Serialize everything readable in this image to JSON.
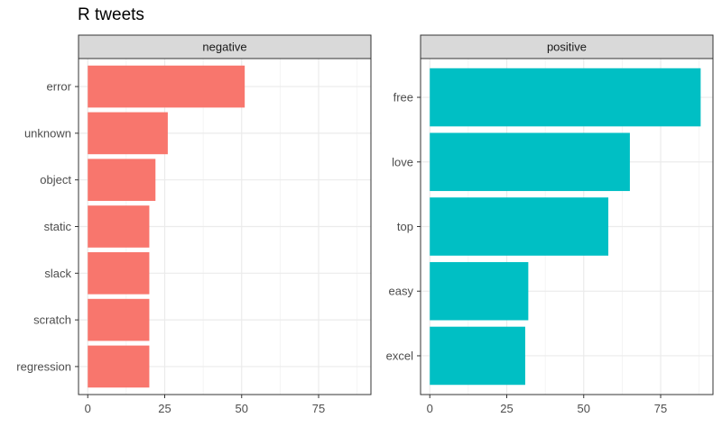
{
  "chart_data": {
    "type": "bar",
    "orientation": "horizontal",
    "title": "R tweets",
    "facets": [
      {
        "name": "negative",
        "color": "#F8766D",
        "categories": [
          "error",
          "unknown",
          "object",
          "static",
          "slack",
          "scratch",
          "regression"
        ],
        "values": [
          51,
          26,
          22,
          20,
          20,
          20,
          20
        ]
      },
      {
        "name": "positive",
        "color": "#00BFC4",
        "categories": [
          "free",
          "love",
          "top",
          "easy",
          "excel"
        ],
        "values": [
          88,
          65,
          58,
          32,
          31
        ]
      }
    ],
    "xlim": [
      -3,
      92
    ],
    "x_ticks": [
      0,
      25,
      50,
      75
    ],
    "grid": true,
    "xlabel": "",
    "ylabel": ""
  }
}
